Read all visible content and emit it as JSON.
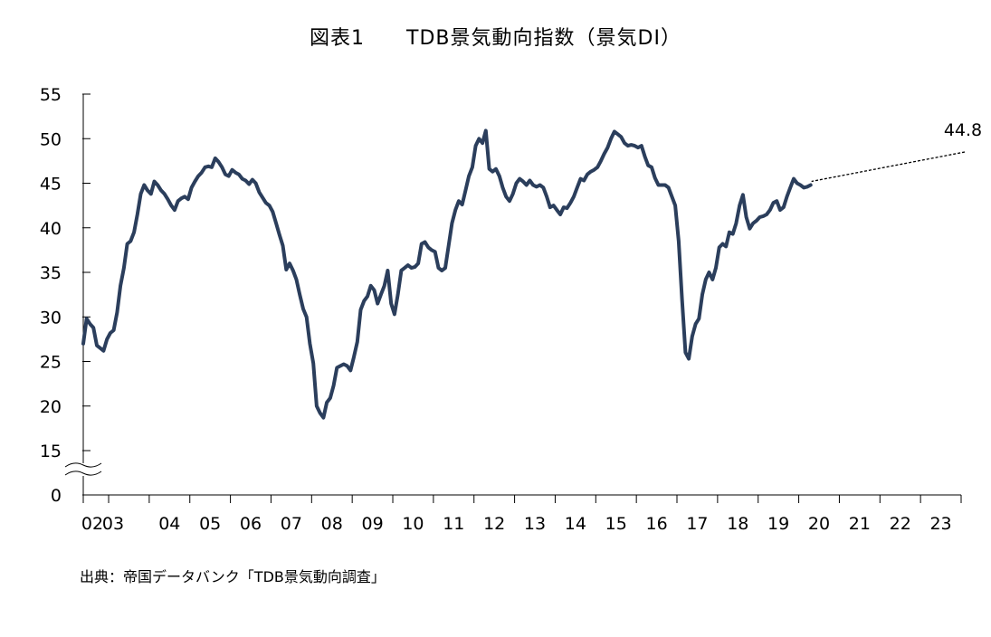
{
  "title": "図表1　　TDB景気動向指数（景気DI）",
  "source": "出典：帝国データバンク「TDB景気動向調査」",
  "chart_data": {
    "type": "line",
    "title": "図表1　　TDB景気動向指数（景気DI）",
    "xlabel": "",
    "ylabel": "",
    "y_ticks": [
      0,
      15,
      20,
      25,
      30,
      35,
      40,
      45,
      50,
      55
    ],
    "ylim": [
      15,
      55
    ],
    "axis_break": "between 0 and 15",
    "x_tick_labels": [
      "02",
      "03",
      "04",
      "05",
      "06",
      "07",
      "08",
      "09",
      "10",
      "11",
      "12",
      "13",
      "14",
      "15",
      "16",
      "17",
      "18",
      "19",
      "20",
      "21",
      "22",
      "23"
    ],
    "grid": false,
    "line_color": "#2b3e5c",
    "annotation": {
      "text": "44.8"
    },
    "series": [
      {
        "start": "2002-05",
        "frequency": "monthly",
        "values": [
          27.0,
          29.8,
          29.2,
          28.8,
          26.8,
          26.5,
          26.2,
          27.5,
          28.2,
          28.5,
          30.5,
          33.5,
          35.5,
          38.2,
          38.5,
          39.5,
          41.5,
          43.8,
          44.8,
          44.2,
          43.8,
          45.2,
          44.8,
          44.2,
          43.8,
          43.2,
          42.5,
          42.0,
          43.0,
          43.3,
          43.5,
          43.2,
          44.5,
          45.2,
          45.8,
          46.2,
          46.8,
          46.9,
          46.8,
          47.8,
          47.4,
          46.8,
          46.0,
          45.8,
          46.5,
          46.2,
          46.0,
          45.5,
          45.3,
          44.9,
          45.4,
          45.0,
          44.0,
          43.4,
          42.8,
          42.5,
          41.8,
          40.5,
          39.2,
          38.0,
          35.3,
          36.0,
          35.2,
          34.2,
          32.5,
          30.9,
          30.0,
          27.0,
          24.8,
          20.0,
          19.2,
          18.7,
          20.4,
          20.9,
          22.3,
          24.3,
          24.5,
          24.7,
          24.5,
          24.0,
          25.5,
          27.2,
          30.8,
          31.8,
          32.3,
          33.5,
          33.0,
          31.5,
          32.5,
          33.5,
          35.2,
          31.5,
          30.3,
          32.5,
          35.2,
          35.5,
          35.8,
          35.5,
          35.6,
          36.0,
          38.2,
          38.4,
          37.8,
          37.5,
          37.3,
          35.5,
          35.2,
          35.5,
          38.0,
          40.5,
          42.0,
          43.0,
          42.6,
          44.2,
          45.8,
          46.8,
          49.2,
          50.0,
          49.5,
          50.9,
          46.6,
          46.3,
          46.6,
          45.8,
          44.5,
          43.5,
          43.0,
          43.8,
          45.0,
          45.5,
          45.2,
          44.8,
          45.3,
          44.8,
          44.6,
          44.8,
          44.5,
          43.5,
          42.3,
          42.5,
          42.0,
          41.5,
          42.3,
          42.2,
          42.8,
          43.5,
          44.5,
          45.5,
          45.3,
          46.0,
          46.3,
          46.5,
          46.8,
          47.5,
          48.3,
          49.0,
          50.0,
          50.8,
          50.5,
          50.2,
          49.5,
          49.2,
          49.3,
          49.2,
          49.0,
          49.2,
          48.0,
          47.0,
          46.8,
          45.6,
          44.8,
          44.8,
          44.8,
          44.5,
          43.5,
          42.5,
          38.5,
          32.0,
          26.0,
          25.3,
          27.8,
          29.2,
          29.8,
          32.5,
          34.2,
          35.0,
          34.2,
          35.5,
          37.8,
          38.2,
          37.9,
          39.5,
          39.3,
          40.5,
          42.5,
          43.7,
          41.2,
          39.9,
          40.5,
          40.8,
          41.2,
          41.3,
          41.5,
          42.0,
          42.8,
          43.0,
          42.0,
          42.3,
          43.5,
          44.5,
          45.5,
          45.0,
          44.8,
          44.5,
          44.6,
          44.8
        ]
      }
    ]
  }
}
